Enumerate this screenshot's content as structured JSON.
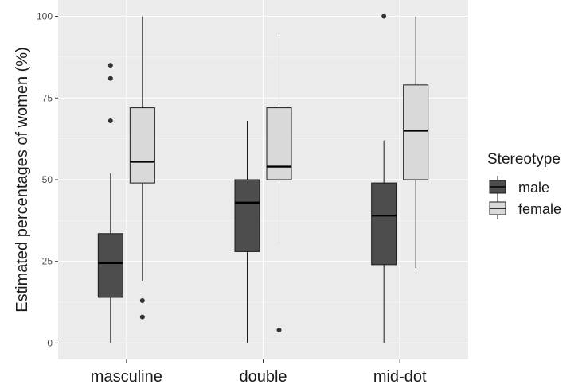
{
  "chart_data": {
    "type": "boxplot",
    "ylabel": "Estimated percentages of women (%)",
    "xlabel": "",
    "categories": [
      "masculine",
      "double",
      "mid-dot"
    ],
    "ylim": [
      -5,
      105
    ],
    "yticks": [
      0,
      25,
      50,
      75,
      100
    ],
    "grid": true,
    "legend": {
      "title": "Stereotype",
      "position": "right",
      "entries": [
        "male",
        "female"
      ]
    },
    "series": [
      {
        "name": "male",
        "color": "#4d4d4d",
        "boxes": [
          {
            "min": 0,
            "q1": 14,
            "median": 24.5,
            "q3": 33.5,
            "max": 52,
            "outliers": [
              68,
              81,
              85
            ]
          },
          {
            "min": 0,
            "q1": 28,
            "median": 43,
            "q3": 50,
            "max": 68,
            "outliers": []
          },
          {
            "min": 0,
            "q1": 24,
            "median": 39,
            "q3": 49,
            "max": 62,
            "outliers": [
              100
            ]
          }
        ]
      },
      {
        "name": "female",
        "color": "#d9d9d9",
        "boxes": [
          {
            "min": 19,
            "q1": 49,
            "median": 55.5,
            "q3": 72,
            "max": 100,
            "outliers": [
              8,
              13
            ]
          },
          {
            "min": 31,
            "q1": 50,
            "median": 54,
            "q3": 72,
            "max": 94,
            "outliers": [
              4
            ]
          },
          {
            "min": 23,
            "q1": 50,
            "median": 65,
            "q3": 79,
            "max": 100,
            "outliers": []
          }
        ]
      }
    ]
  }
}
